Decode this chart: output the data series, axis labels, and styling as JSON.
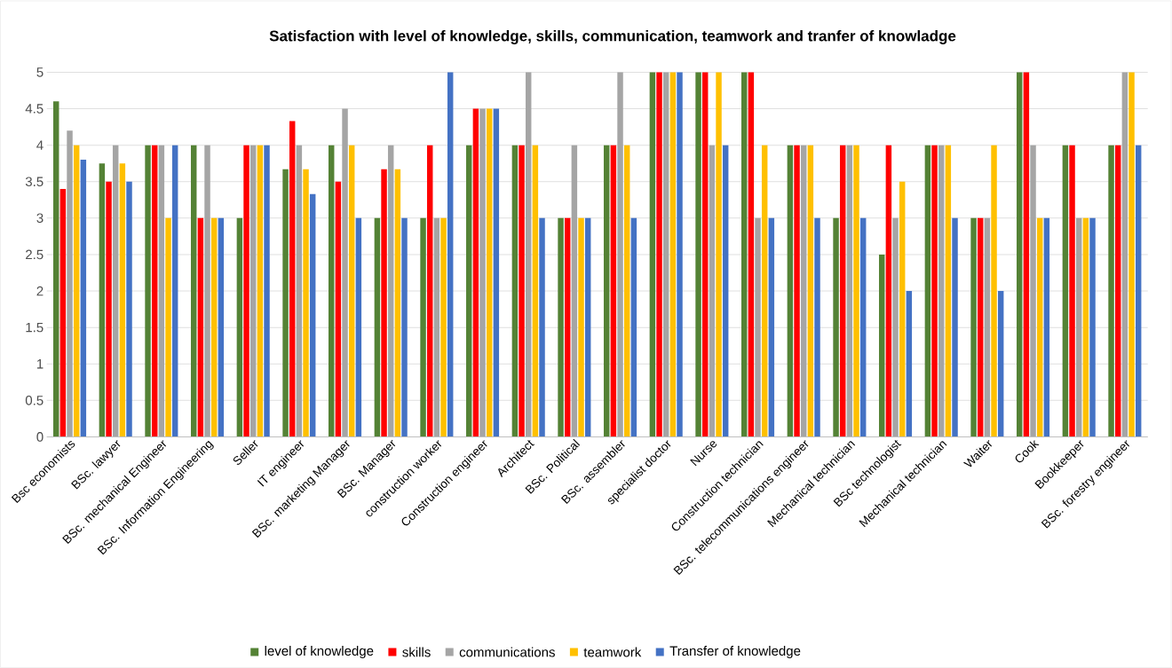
{
  "chart_data": {
    "type": "bar",
    "title": "Satisfaction with level of knowledge, skills,  communication, teamwork and tranfer of knowladge",
    "categories": [
      "Bsc economists",
      "BSc. lawyer",
      "BSc. mechanical Engineer",
      "BSc. Information Engineering",
      "Seller",
      "IT engineer",
      "BSc. marketing Manager",
      "BSc. Manager",
      "construction worker",
      "Construction engineer",
      "Architect",
      "BSc. Political",
      "BSc. assembler",
      "specialist doctor",
      "Nurse",
      "Construction technician",
      "BSc. telecommunications engineer",
      "Mechanical technician",
      "BSc technologist",
      "Mechanical technician",
      "Waiter",
      "Cook",
      "Bookkeeper",
      "BSc. forestry engineer"
    ],
    "series": [
      {
        "name": "level of knowledge",
        "color": "#548235",
        "values": [
          4.6,
          3.75,
          4,
          4,
          3,
          3.67,
          4,
          3,
          3,
          4,
          4,
          3,
          4,
          5,
          5,
          5,
          4,
          3,
          2.5,
          4,
          3,
          5,
          4,
          4
        ]
      },
      {
        "name": "skills",
        "color": "#ff0000",
        "values": [
          3.4,
          3.5,
          4,
          3,
          4,
          4.33,
          3.5,
          3.67,
          4,
          4.5,
          4,
          3,
          4,
          5,
          5,
          5,
          4,
          4,
          4,
          4,
          3,
          5,
          4,
          4
        ]
      },
      {
        "name": "communications",
        "color": "#a5a5a5",
        "values": [
          4.2,
          4,
          4,
          4,
          4,
          4,
          4.5,
          4,
          3,
          4.5,
          5,
          4,
          5,
          5,
          4,
          3,
          4,
          4,
          3,
          4,
          3,
          4,
          3,
          5
        ]
      },
      {
        "name": "teamwork",
        "color": "#ffc000",
        "values": [
          4,
          3.75,
          3,
          3,
          4,
          3.67,
          4,
          3.67,
          3,
          4.5,
          4,
          3,
          4,
          5,
          5,
          4,
          4,
          4,
          3.5,
          4,
          4,
          3,
          3,
          5
        ]
      },
      {
        "name": "Transfer of knowledge",
        "color": "#4472c4",
        "values": [
          3.8,
          3.5,
          4,
          3,
          4,
          3.33,
          3,
          3,
          5,
          4.5,
          3,
          3,
          3,
          5,
          4,
          3,
          3,
          3,
          2,
          3,
          2,
          3,
          3,
          4
        ]
      }
    ],
    "ylim": [
      0,
      5
    ],
    "yticks": [
      0,
      0.5,
      1,
      1.5,
      2,
      2.5,
      3,
      3.5,
      4,
      4.5,
      5
    ],
    "grid": "y",
    "legend": "bottom"
  }
}
